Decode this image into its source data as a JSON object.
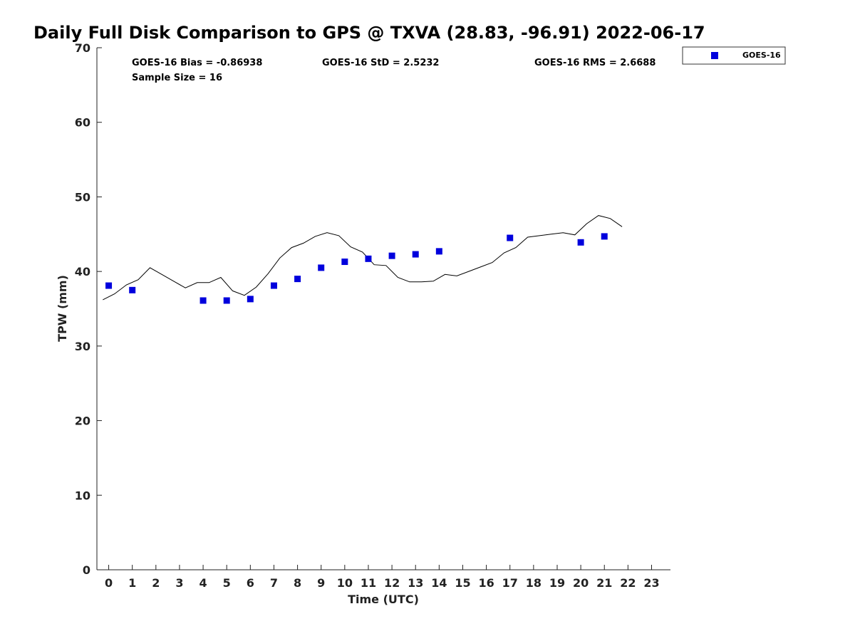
{
  "chart_data": {
    "type": "scatter",
    "title": "Daily Full Disk Comparison to GPS @ TXVA (28.83, -96.91) 2022-06-17",
    "xlabel": "Time (UTC)",
    "ylabel": "TPW (mm)",
    "xlim": [
      -0.5,
      23.8
    ],
    "ylim": [
      0,
      70
    ],
    "x_ticks": [
      0,
      1,
      2,
      3,
      4,
      5,
      6,
      7,
      8,
      9,
      10,
      11,
      12,
      13,
      14,
      15,
      16,
      17,
      18,
      19,
      20,
      21,
      22,
      23
    ],
    "y_ticks": [
      0,
      10,
      20,
      30,
      40,
      50,
      60,
      70
    ],
    "grid": false,
    "legend": {
      "position": "top-right",
      "entries": [
        "GOES-16"
      ]
    },
    "stats": {
      "bias": "GOES-16 Bias = -0.86938",
      "std": "GOES-16 StD = 2.5232",
      "rms": "GOES-16 RMS = 2.6688",
      "sample_size": "Sample Size = 16"
    },
    "series": [
      {
        "name": "GOES-16",
        "kind": "scatter",
        "color": "#0000dd",
        "marker": "square",
        "points": [
          [
            0,
            38.1
          ],
          [
            1,
            37.5
          ],
          [
            4,
            36.1
          ],
          [
            5,
            36.1
          ],
          [
            6,
            36.3
          ],
          [
            7,
            38.1
          ],
          [
            8,
            39.0
          ],
          [
            9,
            40.5
          ],
          [
            10,
            41.3
          ],
          [
            11,
            41.7
          ],
          [
            12,
            42.1
          ],
          [
            13,
            42.3
          ],
          [
            14,
            42.7
          ],
          [
            17,
            44.5
          ],
          [
            20,
            43.9
          ],
          [
            21,
            44.7
          ]
        ]
      },
      {
        "kind": "line",
        "color": "#000000",
        "points": [
          [
            -0.25,
            36.2
          ],
          [
            0.25,
            37.0
          ],
          [
            0.75,
            38.2
          ],
          [
            1.25,
            38.9
          ],
          [
            1.75,
            40.5
          ],
          [
            2.25,
            39.6
          ],
          [
            2.75,
            38.7
          ],
          [
            3.25,
            37.8
          ],
          [
            3.75,
            38.5
          ],
          [
            4.25,
            38.5
          ],
          [
            4.75,
            39.2
          ],
          [
            5.25,
            37.4
          ],
          [
            5.75,
            36.8
          ],
          [
            6.25,
            37.9
          ],
          [
            6.75,
            39.7
          ],
          [
            7.25,
            41.8
          ],
          [
            7.75,
            43.2
          ],
          [
            8.25,
            43.8
          ],
          [
            8.75,
            44.7
          ],
          [
            9.25,
            45.2
          ],
          [
            9.75,
            44.8
          ],
          [
            10.25,
            43.3
          ],
          [
            10.75,
            42.6
          ],
          [
            11.25,
            40.9
          ],
          [
            11.75,
            40.8
          ],
          [
            12.25,
            39.2
          ],
          [
            12.75,
            38.6
          ],
          [
            13.25,
            38.6
          ],
          [
            13.75,
            38.7
          ],
          [
            14.25,
            39.6
          ],
          [
            14.75,
            39.4
          ],
          [
            15.25,
            40.0
          ],
          [
            15.75,
            40.6
          ],
          [
            16.25,
            41.2
          ],
          [
            16.75,
            42.5
          ],
          [
            17.25,
            43.2
          ],
          [
            17.75,
            44.6
          ],
          [
            18.25,
            44.8
          ],
          [
            18.75,
            45.0
          ],
          [
            19.25,
            45.2
          ],
          [
            19.75,
            44.9
          ],
          [
            20.25,
            46.4
          ],
          [
            20.75,
            47.5
          ],
          [
            21.25,
            47.1
          ],
          [
            21.75,
            46.0
          ]
        ]
      }
    ]
  }
}
